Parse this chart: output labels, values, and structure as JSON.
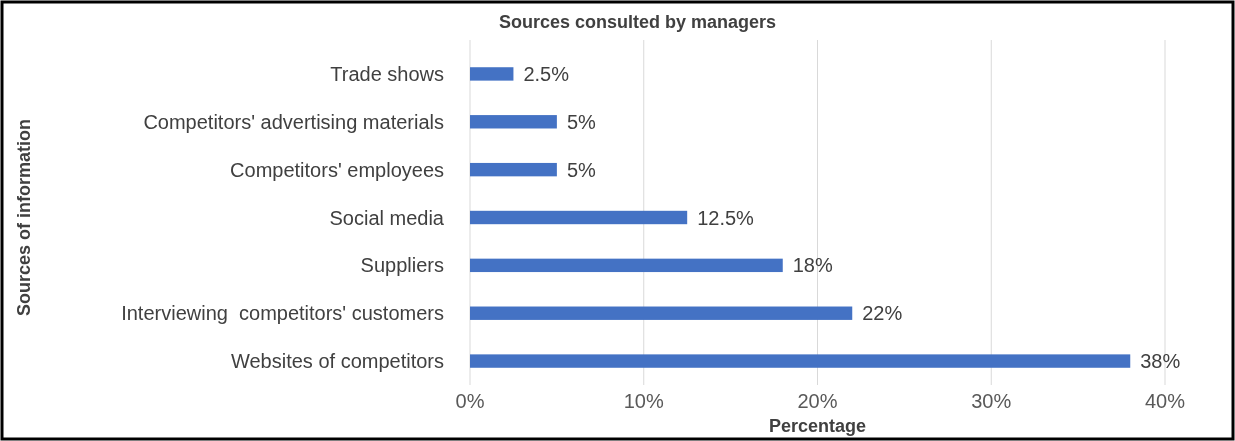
{
  "chart_data": {
    "type": "bar",
    "orientation": "horizontal",
    "title": "Sources consulted by managers",
    "xlabel": "Percentage",
    "ylabel": "Sources of information",
    "categories": [
      "Trade shows",
      "Competitors' advertising materials",
      "Competitors' employees",
      "Social media",
      "Suppliers",
      "Interviewing  competitors' customers",
      "Websites of competitors"
    ],
    "values": [
      2.5,
      5,
      5,
      12.5,
      18,
      22,
      38
    ],
    "value_labels": [
      "2.5%",
      "5%",
      "5%",
      "12.5%",
      "18%",
      "22%",
      "38%"
    ],
    "color": "#4472c4",
    "xlim": [
      0,
      40
    ],
    "xticks": [
      {
        "value": 0,
        "label": "0%"
      },
      {
        "value": 10,
        "label": "10%"
      },
      {
        "value": 20,
        "label": "20%"
      },
      {
        "value": 30,
        "label": "30%"
      },
      {
        "value": 40,
        "label": "40%"
      }
    ],
    "grid": "x"
  }
}
